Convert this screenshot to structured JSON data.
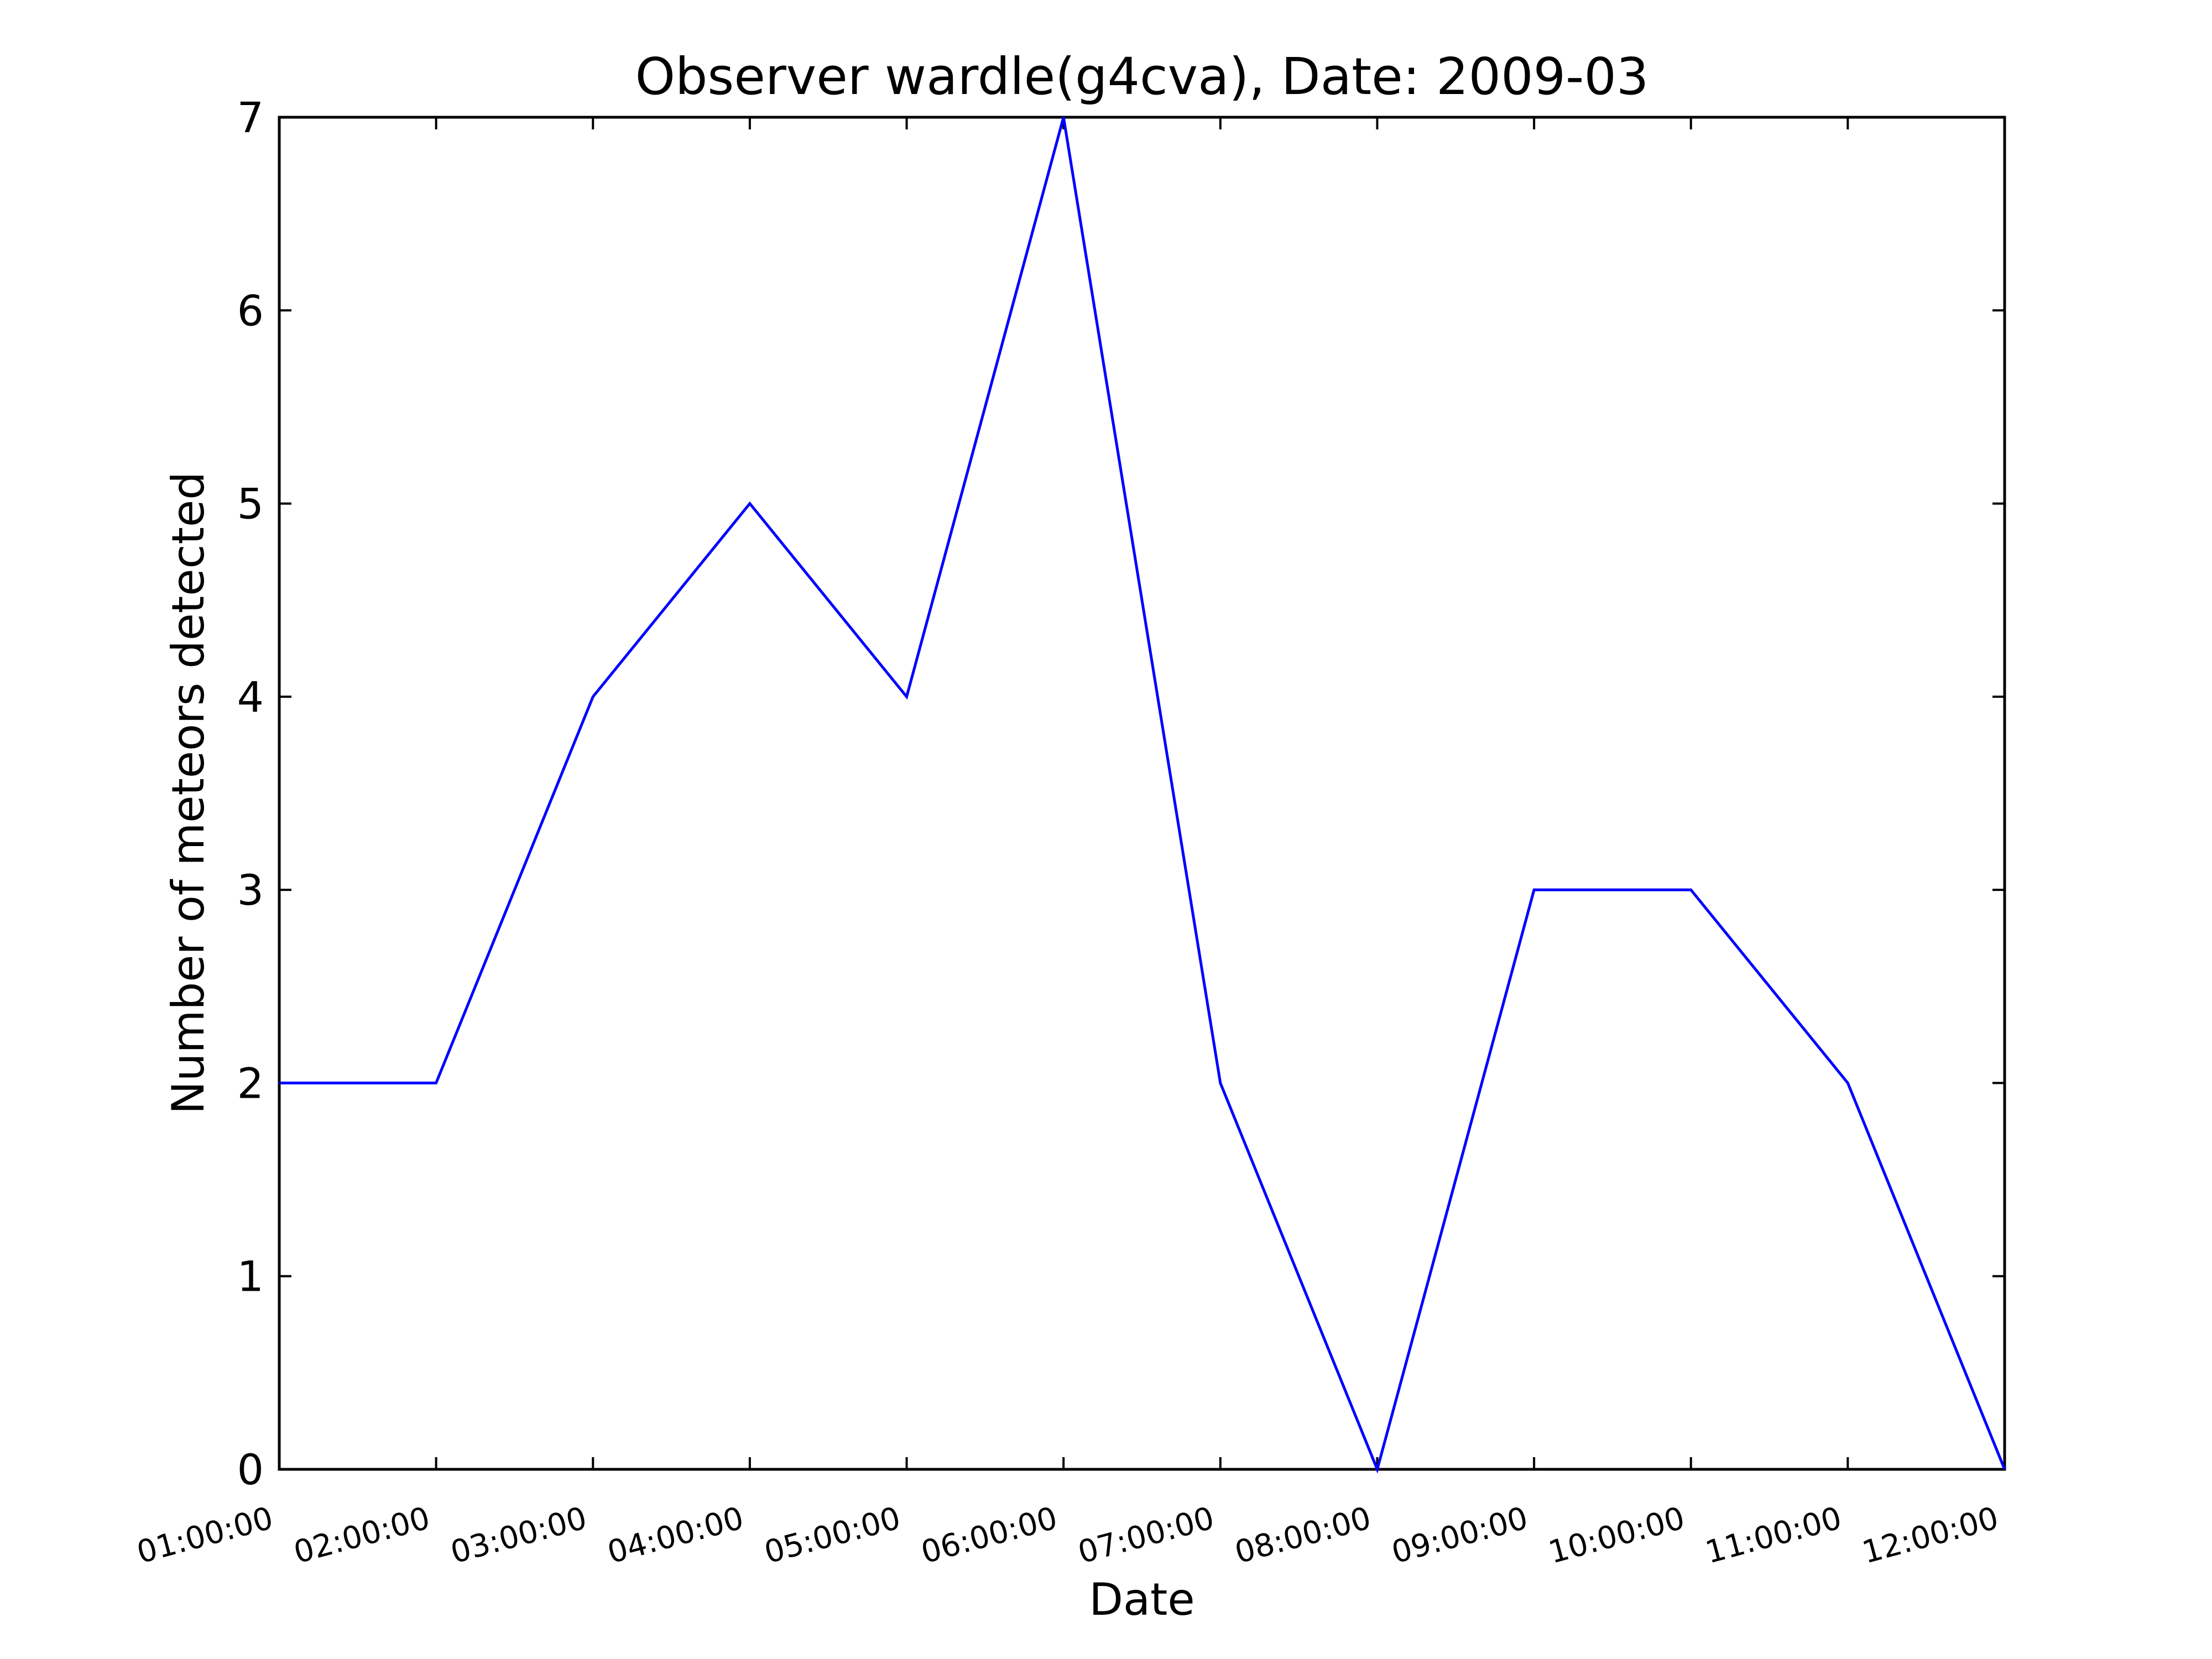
{
  "chart_data": {
    "type": "line",
    "title": "Observer wardle(g4cva), Date: 2009-03",
    "xlabel": "Date",
    "ylabel": "Number of meteors detected",
    "categories": [
      "01:00:00",
      "02:00:00",
      "03:00:00",
      "04:00:00",
      "05:00:00",
      "06:00:00",
      "07:00:00",
      "08:00:00",
      "09:00:00",
      "10:00:00",
      "11:00:00",
      "12:00:00"
    ],
    "series": [
      {
        "values": [
          2,
          2,
          4,
          5,
          4,
          7,
          2,
          0,
          3,
          3,
          2,
          0
        ]
      }
    ],
    "ylim": [
      0,
      7
    ],
    "yticks": [
      "0",
      "1",
      "2",
      "3",
      "4",
      "5",
      "6",
      "7"
    ],
    "grid": false,
    "line_color": "#0000ff"
  }
}
